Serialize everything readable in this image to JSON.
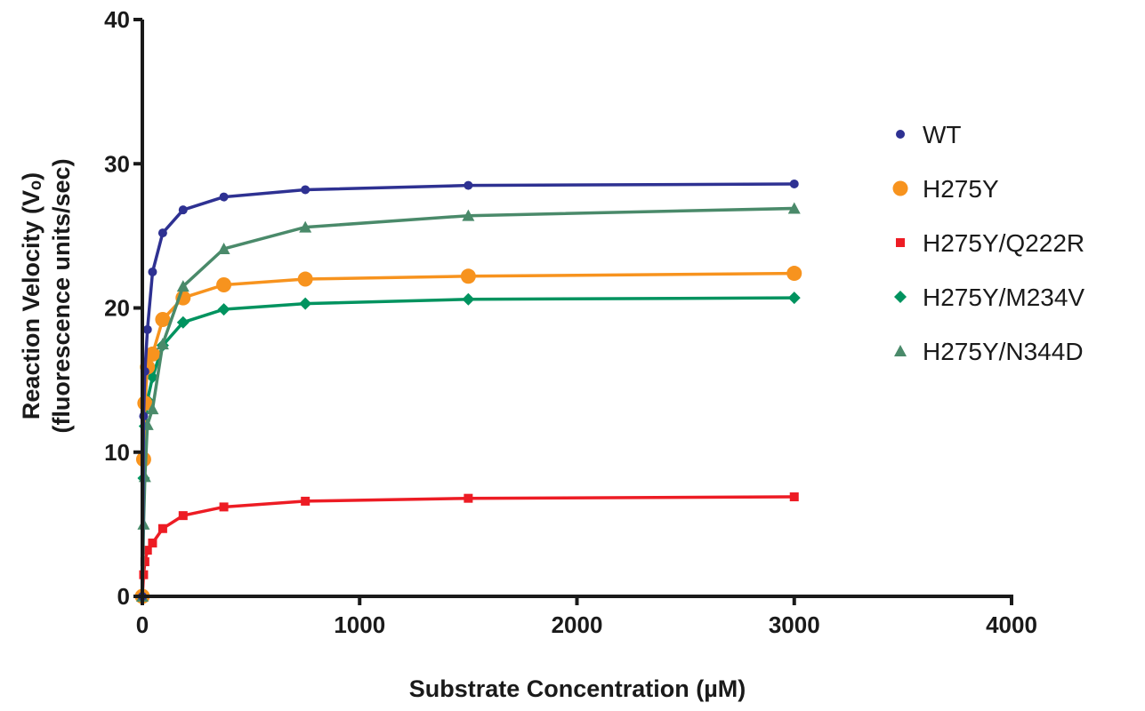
{
  "chart_data": {
    "type": "line",
    "title": "",
    "xlabel": "Substrate Concentration (µM)",
    "ylabel_line1": "Reaction Velocity (Vₒ)",
    "ylabel_line2": "(fluorescence units/sec)",
    "xlim": [
      0,
      4000
    ],
    "ylim": [
      0,
      40
    ],
    "xticks": [
      0,
      1000,
      2000,
      3000,
      4000
    ],
    "yticks": [
      0,
      10,
      20,
      30,
      40
    ],
    "xtick_labels": [
      "0",
      "1000",
      "2000",
      "3000",
      "4000"
    ],
    "ytick_labels": [
      "0",
      "10",
      "20",
      "30",
      "40"
    ],
    "grid": false,
    "legend": "right",
    "x": [
      0,
      5.86,
      11.72,
      23.44,
      46.88,
      93.75,
      187.5,
      375,
      750,
      1500,
      3000
    ],
    "series": [
      {
        "name": "WT",
        "marker": "circle",
        "color": "#2e3192",
        "values": [
          0,
          12.5,
          15.6,
          18.5,
          22.5,
          25.2,
          26.8,
          27.7,
          28.2,
          28.5,
          28.6
        ]
      },
      {
        "name": "H275Y",
        "marker": "large-circle",
        "color": "#f7931e",
        "values": [
          0,
          9.5,
          13.4,
          15.9,
          16.8,
          19.2,
          20.7,
          21.6,
          22.0,
          22.2,
          22.4
        ]
      },
      {
        "name": "H275Y/Q222R",
        "marker": "square",
        "color": "#ed1c24",
        "values": [
          0,
          1.5,
          2.4,
          3.2,
          3.7,
          4.7,
          5.6,
          6.2,
          6.6,
          6.8,
          6.9
        ]
      },
      {
        "name": "H275Y/M234V",
        "marker": "diamond",
        "color": "#00935f",
        "values": [
          0,
          8.2,
          11.8,
          13.6,
          15.2,
          17.4,
          19.0,
          19.9,
          20.3,
          20.6,
          20.7
        ]
      },
      {
        "name": "H275Y/N344D",
        "marker": "triangle",
        "color": "#4a8a6a",
        "values": [
          0,
          5.0,
          8.3,
          11.9,
          13.0,
          17.5,
          21.5,
          24.1,
          25.6,
          26.4,
          26.9
        ]
      }
    ]
  }
}
